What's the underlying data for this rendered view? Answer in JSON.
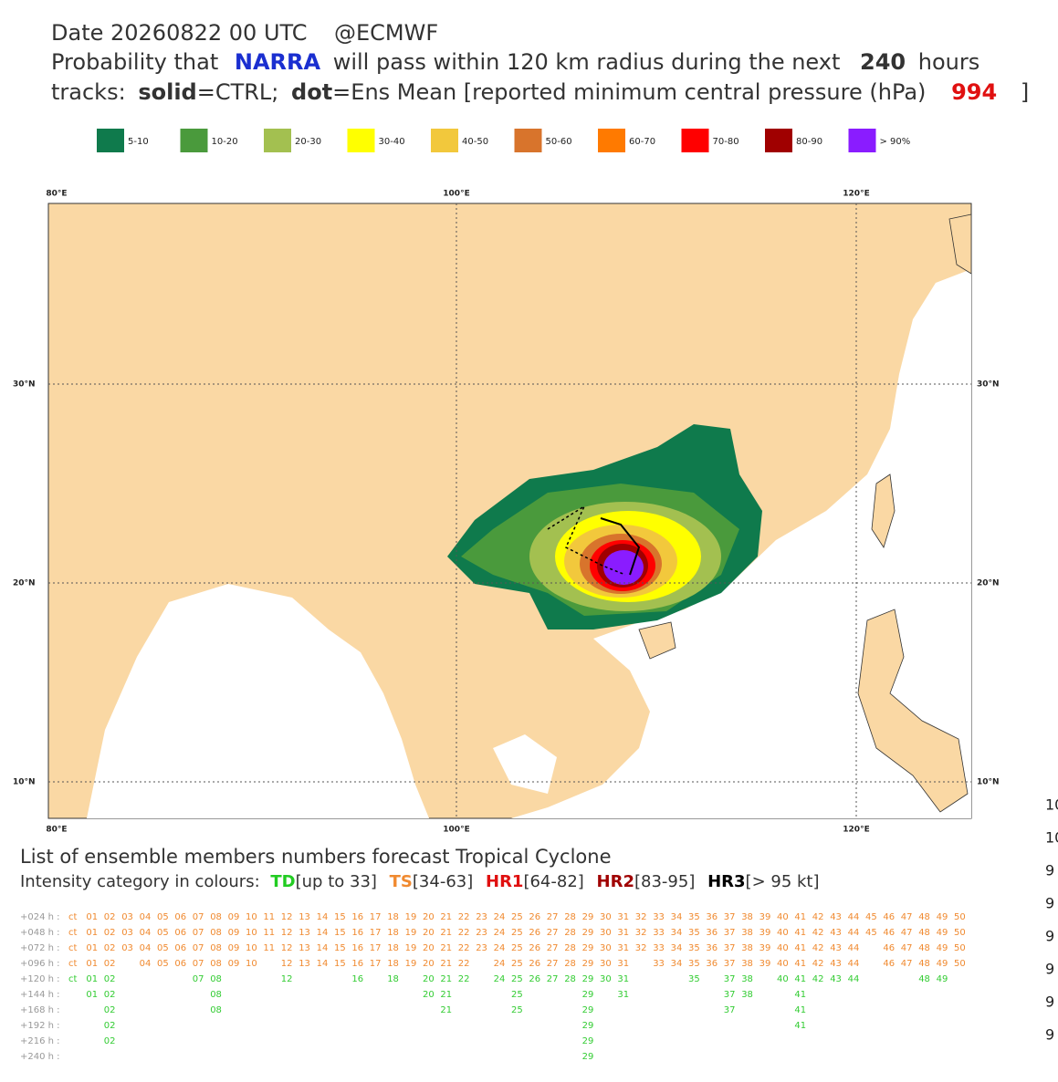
{
  "header": {
    "line1": "Date 20260822 00 UTC",
    "source": "@ECMWF",
    "line2_pre": "Probability that",
    "storm": "NARRA",
    "line2_mid": "will pass within 120 km radius during the next",
    "hours": "240",
    "line2_post": "hours",
    "line3_a": "tracks:",
    "line3_b": "solid",
    "line3_c": "=CTRL;",
    "line3_d": "dot",
    "line3_e": "=Ens Mean [reported minimum central pressure (hPa)",
    "pressure": "994",
    "line3_f": "]"
  },
  "legend": [
    {
      "label": "5-10",
      "color": "#0f7a4c"
    },
    {
      "label": "10-20",
      "color": "#4a9a3c"
    },
    {
      "label": "20-30",
      "color": "#a3c050"
    },
    {
      "label": "30-40",
      "color": "#ffff00"
    },
    {
      "label": "40-50",
      "color": "#f2c83c"
    },
    {
      "label": "50-60",
      "color": "#d8742c"
    },
    {
      "label": "60-70",
      "color": "#ff7a00"
    },
    {
      "label": "70-80",
      "color": "#ff0000"
    },
    {
      "label": "80-90",
      "color": "#a00000"
    },
    {
      "label": "> 90%",
      "color": "#8a1cff"
    }
  ],
  "map": {
    "lon_labels": [
      "80°E",
      "100°E",
      "120°E"
    ],
    "lat_labels": [
      "30°N",
      "20°N",
      "10°N"
    ]
  },
  "list": {
    "title": "List of ensemble members numbers forecast Tropical Cyclone",
    "intensity_pre": "Intensity category in colours:",
    "td": "TD",
    "td_range": "[up to 33]",
    "ts": "TS",
    "ts_range": "[34-63]",
    "hr1": "HR1",
    "hr1_range": "[64-82]",
    "hr2": "HR2",
    "hr2_range": "[83-95]",
    "hr3": "HR3",
    "hr3_range": "[> 95 kt]",
    "rows": [
      {
        "label": "+024 h :",
        "tokens": [
          "ct",
          "01",
          "02",
          "03",
          "04",
          "05",
          "06",
          "07",
          "08",
          "09",
          "10",
          "11",
          "12",
          "13",
          "14",
          "15",
          "16",
          "17",
          "18",
          "19",
          "20",
          "21",
          "22",
          "23",
          "24",
          "25",
          "26",
          "27",
          "28",
          "29",
          "30",
          "31",
          "32",
          "33",
          "34",
          "35",
          "36",
          "37",
          "38",
          "39",
          "40",
          "41",
          "42",
          "43",
          "44",
          "45",
          "46",
          "47",
          "48",
          "49",
          "50"
        ]
      },
      {
        "label": "+048 h :",
        "tokens": [
          "ct",
          "01",
          "02",
          "03",
          "04",
          "05",
          "06",
          "07",
          "08",
          "09",
          "10",
          "11",
          "12",
          "13",
          "14",
          "15",
          "16",
          "17",
          "18",
          "19",
          "20",
          "21",
          "22",
          "23",
          "24",
          "25",
          "26",
          "27",
          "28",
          "29",
          "30",
          "31",
          "32",
          "33",
          "34",
          "35",
          "36",
          "37",
          "38",
          "39",
          "40",
          "41",
          "42",
          "43",
          "44",
          "45",
          "46",
          "47",
          "48",
          "49",
          "50"
        ]
      },
      {
        "label": "+072 h :",
        "tokens": [
          "ct",
          "01",
          "02",
          "03",
          "04",
          "05",
          "06",
          "07",
          "08",
          "09",
          "10",
          "11",
          "12",
          "13",
          "14",
          "15",
          "16",
          "17",
          "18",
          "19",
          "20",
          "21",
          "22",
          "23",
          "24",
          "25",
          "26",
          "27",
          "28",
          "29",
          "30",
          "31",
          "32",
          "33",
          "34",
          "35",
          "36",
          "37",
          "38",
          "39",
          "40",
          "41",
          "42",
          "43",
          "44",
          "46",
          "47",
          "48",
          "49",
          "50"
        ]
      },
      {
        "label": "+096 h :",
        "tokens": [
          "ct",
          "01",
          "02",
          "04",
          "05",
          "06",
          "07",
          "08",
          "09",
          "10",
          "12",
          "13",
          "14",
          "15",
          "16",
          "17",
          "18",
          "19",
          "20",
          "21",
          "22",
          "24",
          "25",
          "26",
          "27",
          "28",
          "29",
          "30",
          "31",
          "33",
          "34",
          "35",
          "36",
          "37",
          "38",
          "39",
          "40",
          "41",
          "42",
          "43",
          "44",
          "46",
          "47",
          "48",
          "49",
          "50"
        ]
      },
      {
        "label": "+120 h :",
        "tokens": [
          "ct",
          "01",
          "02",
          "07",
          "08",
          "12",
          "16",
          "18",
          "20",
          "21",
          "22",
          "24",
          "25",
          "26",
          "27",
          "28",
          "29",
          "30",
          "31",
          "35",
          "37",
          "38",
          "40",
          "41",
          "42",
          "43",
          "44",
          "48",
          "49"
        ]
      },
      {
        "label": "+144 h :",
        "tokens": [
          "01",
          "02",
          "08",
          "20",
          "21",
          "25",
          "29",
          "31",
          "37",
          "38",
          "41"
        ]
      },
      {
        "label": "+168 h :",
        "tokens": [
          "02",
          "08",
          "21",
          "25",
          "29",
          "37",
          "41"
        ]
      },
      {
        "label": "+192 h :",
        "tokens": [
          "02",
          "29",
          "41"
        ]
      },
      {
        "label": "+216 h :",
        "tokens": [
          "02",
          "29"
        ]
      },
      {
        "label": "+240 h :",
        "tokens": [
          "29"
        ]
      }
    ]
  },
  "right_edge": [
    "10",
    "10",
    "9",
    "9",
    "9",
    "9",
    "9",
    "9"
  ]
}
